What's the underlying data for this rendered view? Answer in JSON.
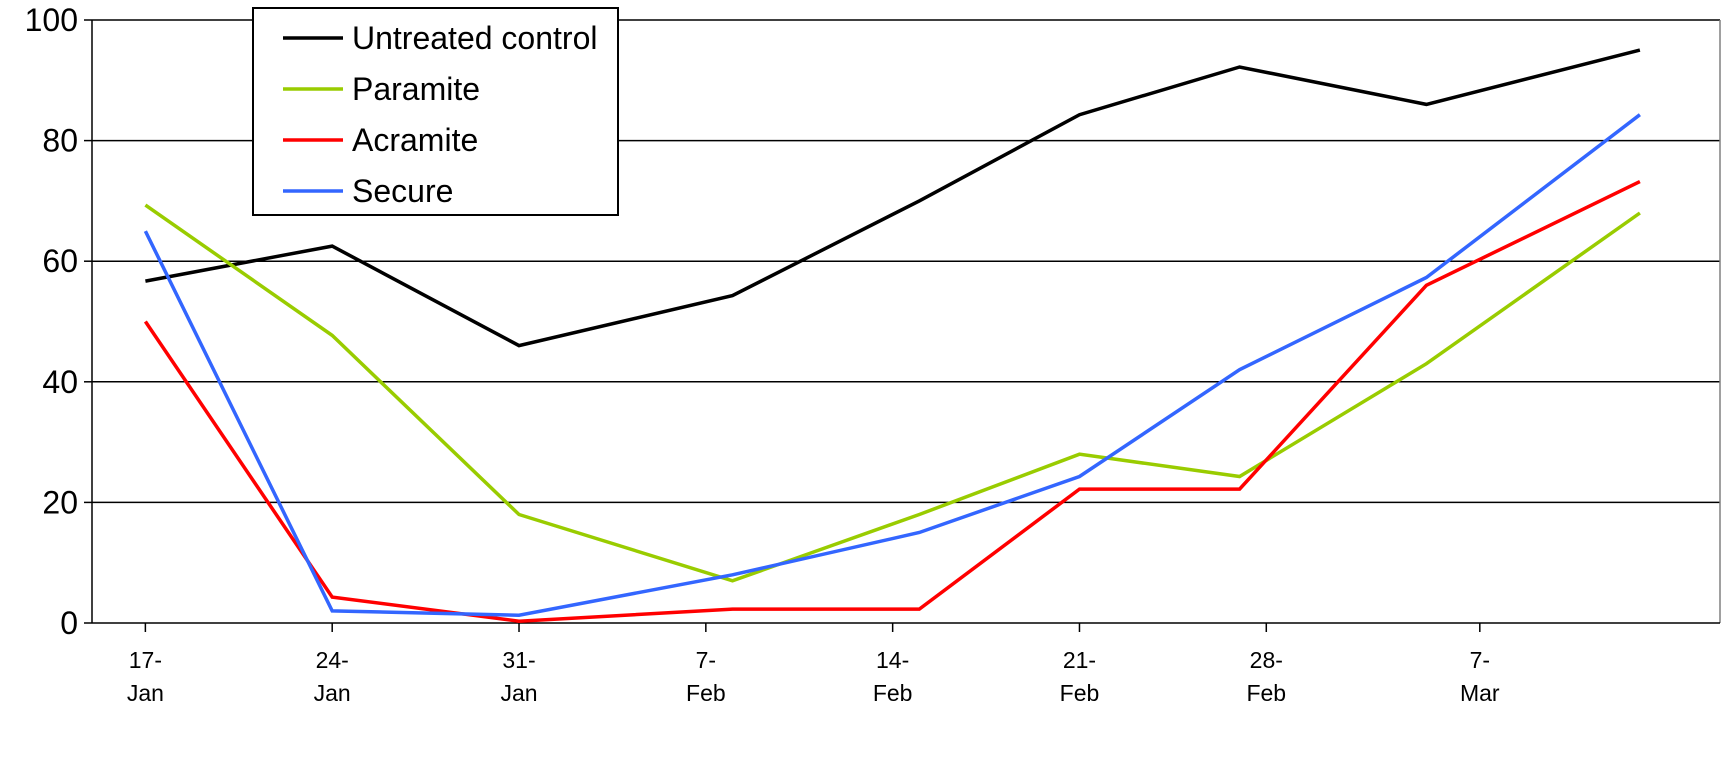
{
  "chart_data": {
    "type": "line",
    "title": "",
    "xlabel": "",
    "ylabel": "",
    "ylim": [
      0,
      100
    ],
    "yticks": [
      "0",
      "20",
      "40",
      "60",
      "80",
      "100"
    ],
    "xlim": [
      "2000-01-15",
      "2000-03-16"
    ],
    "xticks": [
      {
        "date": "2000-01-17",
        "line1": "17-",
        "line2": "Jan"
      },
      {
        "date": "2000-01-24",
        "line1": "24-",
        "line2": "Jan"
      },
      {
        "date": "2000-01-31",
        "line1": "31-",
        "line2": "Jan"
      },
      {
        "date": "2000-02-07",
        "line1": "7-",
        "line2": "Feb"
      },
      {
        "date": "2000-02-14",
        "line1": "14-",
        "line2": "Feb"
      },
      {
        "date": "2000-02-21",
        "line1": "21-",
        "line2": "Feb"
      },
      {
        "date": "2000-02-28",
        "line1": "28-",
        "line2": "Feb"
      },
      {
        "date": "2000-03-07",
        "line1": "7-",
        "line2": "Mar"
      }
    ],
    "x": [
      "2000-01-17",
      "2000-01-24",
      "2000-01-31",
      "2000-02-08",
      "2000-02-15",
      "2000-02-21",
      "2000-02-27",
      "2000-03-05",
      "2000-03-13"
    ],
    "series": [
      {
        "name": "Untreated control",
        "color": "#000000",
        "values": [
          56.7,
          62.5,
          46.0,
          54.3,
          70.0,
          84.3,
          92.2,
          86.0,
          95.0
        ]
      },
      {
        "name": "Paramite",
        "color": "#99cc00",
        "values": [
          69.3,
          47.7,
          18.0,
          7.0,
          18.0,
          28.0,
          24.3,
          43.0,
          68.0
        ]
      },
      {
        "name": "Acramite",
        "color": "#ff0000",
        "values": [
          50.0,
          4.3,
          0.3,
          2.3,
          2.3,
          22.2,
          22.2,
          56.0,
          73.2
        ]
      },
      {
        "name": "Secure",
        "color": "#3366ff",
        "values": [
          65.0,
          2.0,
          1.3,
          8.0,
          15.0,
          24.3,
          42.0,
          57.3,
          84.3
        ]
      }
    ],
    "grid": true,
    "legend_position": "top-left"
  }
}
